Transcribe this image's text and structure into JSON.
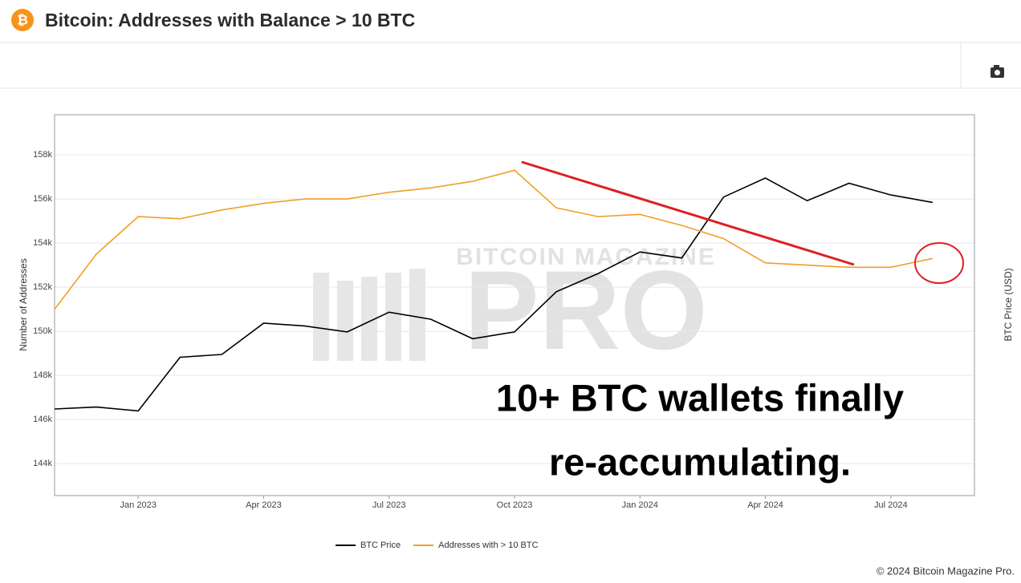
{
  "chart_data": {
    "type": "line",
    "title": "Bitcoin: Addresses with Balance > 10 BTC",
    "watermark": [
      "BITCOIN MAGAZINE",
      "PRO"
    ],
    "annotation": [
      "10+ BTC wallets finally",
      "re-accumulating."
    ],
    "y_label": "Number of Addresses",
    "y2_label": "BTC Price (USD)",
    "x": [
      "2022-11",
      "2022-12",
      "2023-01",
      "2023-02",
      "2023-03",
      "2023-04",
      "2023-05",
      "2023-06",
      "2023-07",
      "2023-08",
      "2023-09",
      "2023-10",
      "2023-11",
      "2023-12",
      "2024-01",
      "2024-02",
      "2024-03",
      "2024-04",
      "2024-05",
      "2024-06",
      "2024-07",
      "2024-08"
    ],
    "series": [
      {
        "name": "BTC Price",
        "color": "#000000",
        "axis": "y2",
        "values": [
          16800,
          17000,
          16600,
          23100,
          23500,
          28500,
          28000,
          27000,
          30500,
          29200,
          25900,
          27000,
          34600,
          38700,
          44200,
          42600,
          62000,
          69700,
          60600,
          67500,
          62800,
          60000
        ]
      },
      {
        "name": "Addresses with > 10 BTC",
        "color": "#f0a028",
        "values": [
          151000,
          153500,
          155200,
          155100,
          155500,
          155800,
          156000,
          156000,
          156300,
          156500,
          156800,
          157300,
          155600,
          155200,
          155300,
          154800,
          154200,
          153100,
          153000,
          152900,
          152900,
          153300
        ]
      }
    ],
    "xlim": [
      "2022-11",
      "2024-09"
    ],
    "xticks": [
      {
        "value": "2023-01",
        "label": "Jan 2023"
      },
      {
        "value": "2023-04",
        "label": "Apr 2023"
      },
      {
        "value": "2023-07",
        "label": "Jul 2023"
      },
      {
        "value": "2023-10",
        "label": "Oct 2023"
      },
      {
        "value": "2024-01",
        "label": "Jan 2024"
      },
      {
        "value": "2024-04",
        "label": "Apr 2024"
      },
      {
        "value": "2024-07",
        "label": "Jul 2024"
      }
    ],
    "ylim": [
      142550,
      159820
    ],
    "yticks": [
      {
        "value": 144000,
        "label": "144k"
      },
      {
        "value": 146000,
        "label": "146k"
      },
      {
        "value": 148000,
        "label": "148k"
      },
      {
        "value": 150000,
        "label": "150k"
      },
      {
        "value": 152000,
        "label": "152k"
      },
      {
        "value": 154000,
        "label": "154k"
      },
      {
        "value": 156000,
        "label": "156k"
      },
      {
        "value": 158000,
        "label": "158k"
      }
    ],
    "y2lim": [
      9850,
      103000
    ],
    "y2log": true,
    "grid": true,
    "legend": "bottom"
  },
  "footer": "© 2024 Bitcoin Magazine Pro."
}
